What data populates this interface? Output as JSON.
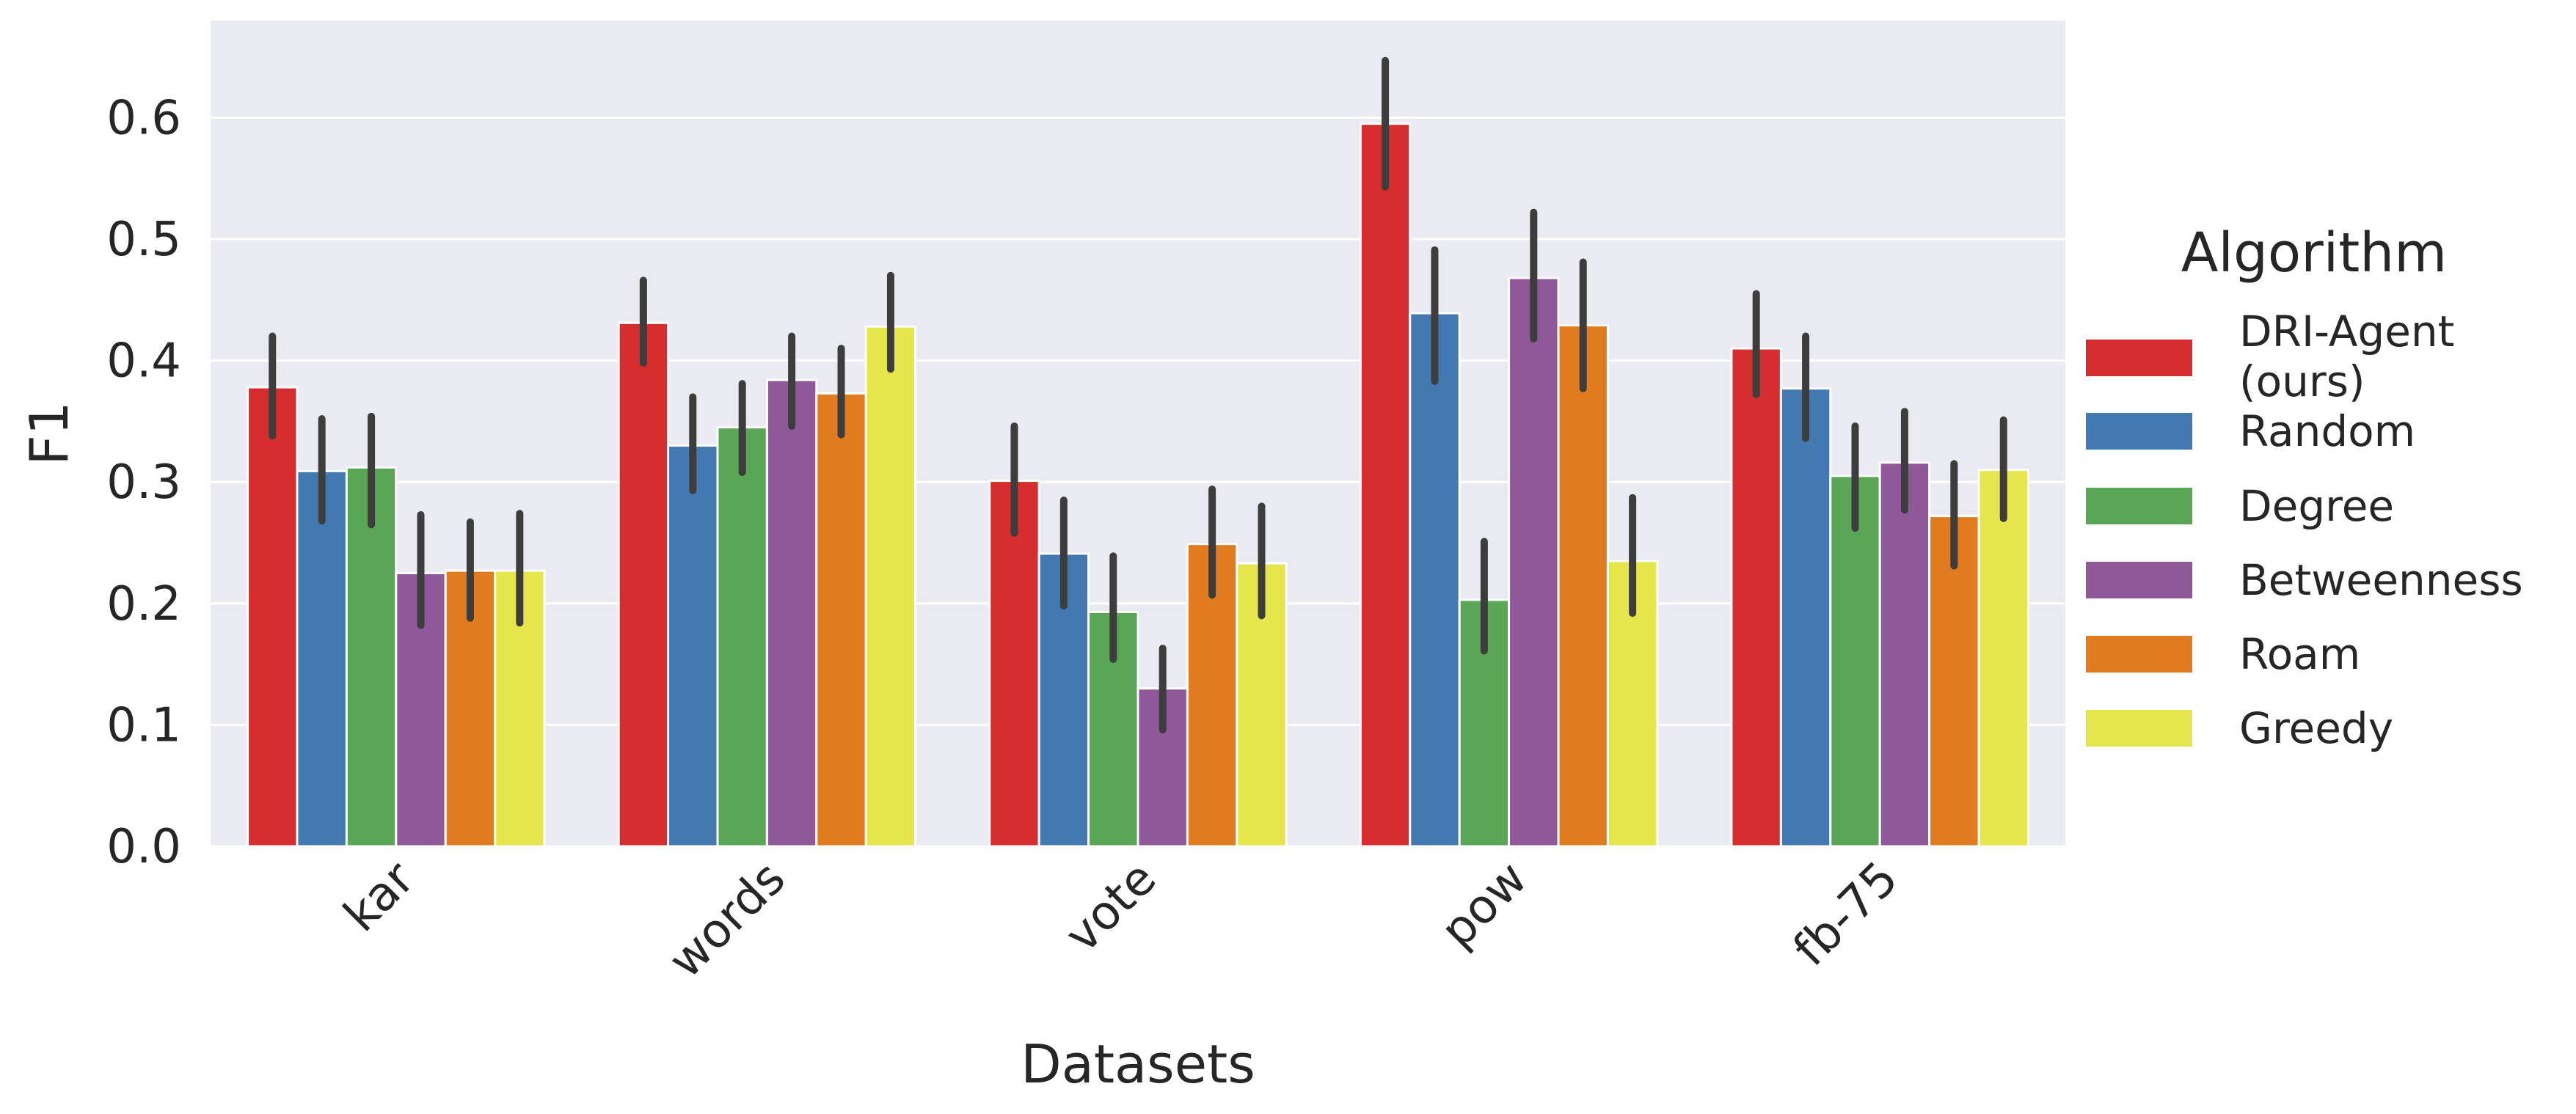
{
  "chart_data": {
    "type": "bar",
    "xlabel": "Datasets",
    "ylabel": "F1",
    "ylim": [
      0,
      0.68
    ],
    "yticks": [
      "0.0",
      "0.1",
      "0.2",
      "0.3",
      "0.4",
      "0.5",
      "0.6"
    ],
    "categories": [
      "kar",
      "words",
      "vote",
      "pow",
      "fb-75"
    ],
    "grid": true,
    "legend": {
      "title": "Algorithm",
      "position": "right"
    },
    "series": [
      {
        "name": "DRI-Agent (ours)",
        "color": "#d62e2e",
        "values": [
          0.378,
          0.431,
          0.301,
          0.595,
          0.41
        ],
        "err_low": [
          0.338,
          0.398,
          0.258,
          0.543,
          0.372
        ],
        "err_high": [
          0.42,
          0.466,
          0.346,
          0.647,
          0.455
        ]
      },
      {
        "name": "Random",
        "color": "#4279b0",
        "values": [
          0.309,
          0.33,
          0.241,
          0.439,
          0.377
        ],
        "err_low": [
          0.268,
          0.293,
          0.198,
          0.383,
          0.336
        ],
        "err_high": [
          0.352,
          0.37,
          0.285,
          0.491,
          0.42
        ]
      },
      {
        "name": "Degree",
        "color": "#5aa556",
        "values": [
          0.312,
          0.345,
          0.193,
          0.203,
          0.305
        ],
        "err_low": [
          0.265,
          0.308,
          0.154,
          0.161,
          0.262
        ],
        "err_high": [
          0.354,
          0.381,
          0.239,
          0.251,
          0.346
        ]
      },
      {
        "name": "Betweenness",
        "color": "#8e5899",
        "values": [
          0.225,
          0.384,
          0.13,
          0.468,
          0.316
        ],
        "err_low": [
          0.182,
          0.346,
          0.096,
          0.418,
          0.277
        ],
        "err_high": [
          0.273,
          0.42,
          0.163,
          0.522,
          0.358
        ]
      },
      {
        "name": "Roam",
        "color": "#e07b1f",
        "values": [
          0.227,
          0.373,
          0.249,
          0.429,
          0.272
        ],
        "err_low": [
          0.188,
          0.339,
          0.207,
          0.377,
          0.231
        ],
        "err_high": [
          0.267,
          0.41,
          0.294,
          0.481,
          0.315
        ]
      },
      {
        "name": "Greedy",
        "color": "#e6e64c",
        "values": [
          0.227,
          0.428,
          0.233,
          0.235,
          0.31
        ],
        "err_low": [
          0.184,
          0.393,
          0.19,
          0.192,
          0.27
        ],
        "err_high": [
          0.274,
          0.47,
          0.28,
          0.287,
          0.351
        ]
      }
    ],
    "legend_lines": [
      [
        "DRI-Agent",
        "(ours)"
      ],
      [
        "Random"
      ],
      [
        "Degree"
      ],
      [
        "Betweenness"
      ],
      [
        "Roam"
      ],
      [
        "Greedy"
      ]
    ]
  }
}
